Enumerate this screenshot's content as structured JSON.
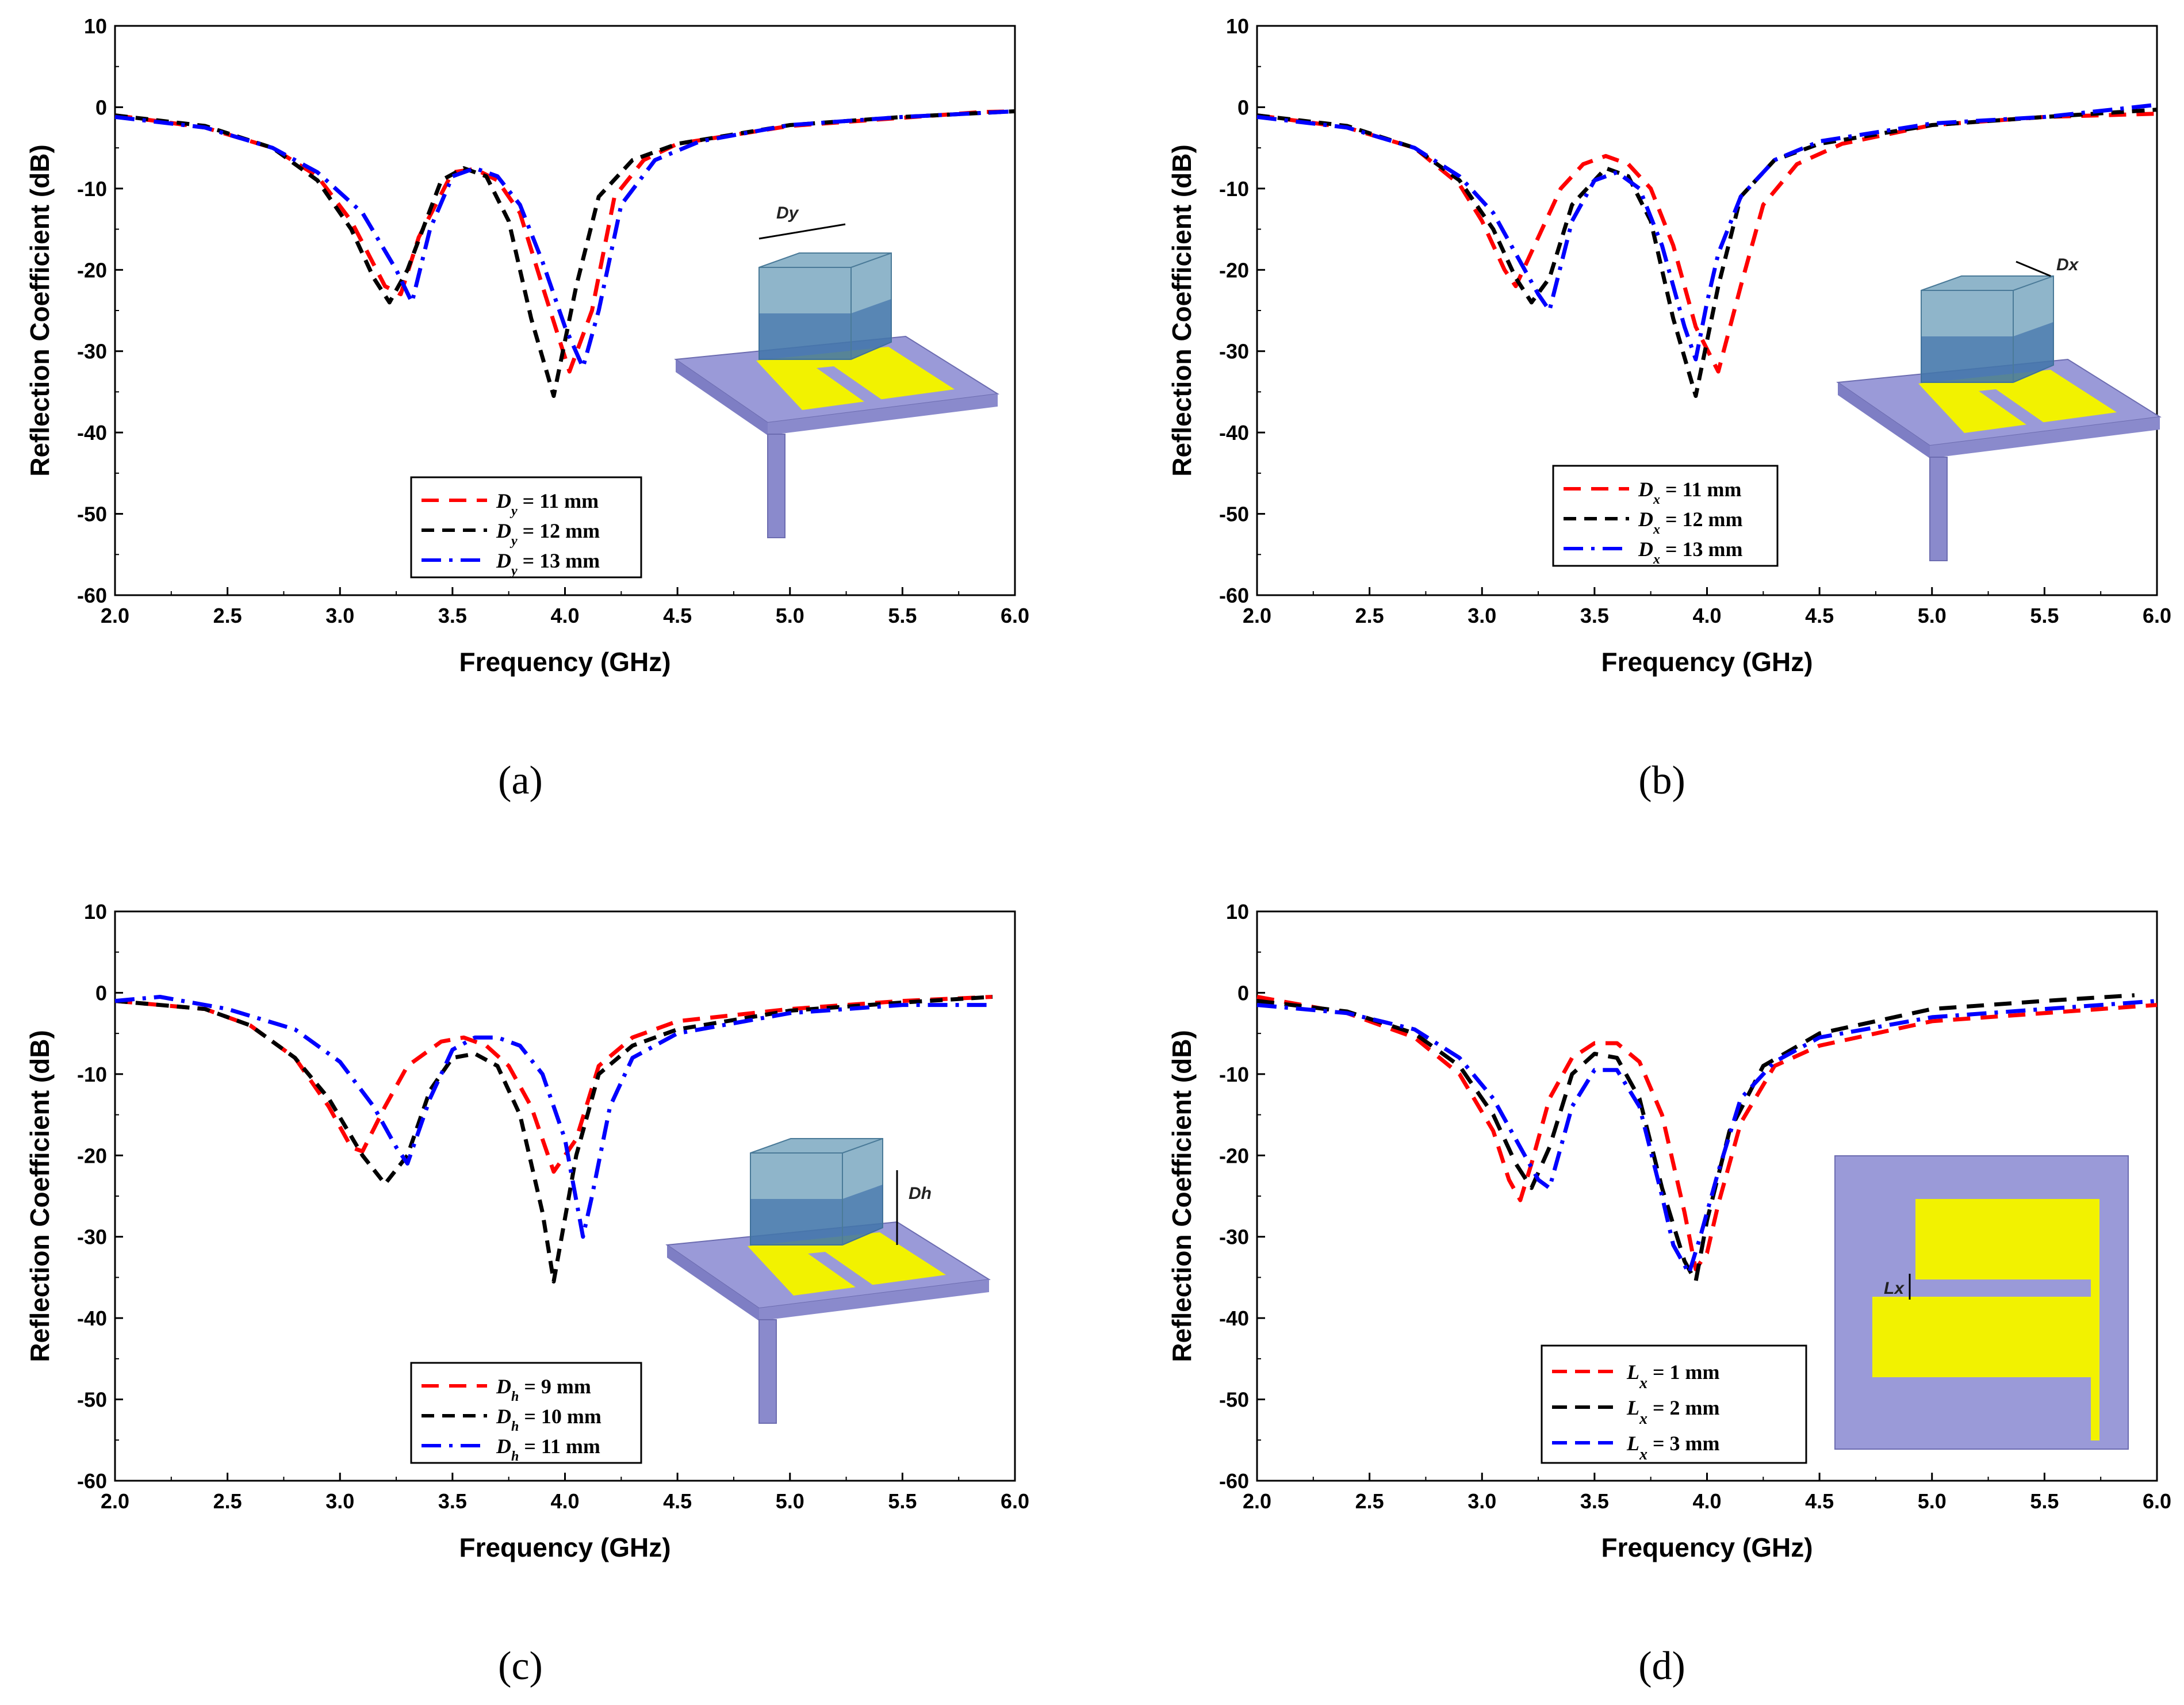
{
  "figure": {
    "panel_labels": [
      "(a)",
      "(b)",
      "(c)",
      "(d)"
    ]
  },
  "colors": {
    "red": "#ff0000",
    "black": "#000000",
    "blue": "#0000ff",
    "substrate": "#9a9ad8",
    "patch": "#f2f200",
    "resonator": "#6a9cb8"
  },
  "chart_data": [
    {
      "type": "line",
      "panel": "(a)",
      "xlabel": "Frequency (GHz)",
      "ylabel": "Reflection Coefficient (dB)",
      "xlim": [
        2.0,
        6.0
      ],
      "ylim": [
        -60,
        10
      ],
      "xticks": [
        "2.0",
        "2.5",
        "3.0",
        "3.5",
        "4.0",
        "4.5",
        "5.0",
        "5.5",
        "6.0"
      ],
      "yticks": [
        "10",
        "0",
        "-10",
        "-20",
        "-30",
        "-40",
        "-50",
        "-60"
      ],
      "inset_label": "Dy",
      "inset_kind": "3d",
      "series": [
        {
          "name": "= 11 mm",
          "sym": "D",
          "sub": "y",
          "color": "#ff0000",
          "dash": "dash",
          "x": [
            2.0,
            2.4,
            2.7,
            2.9,
            3.05,
            3.2,
            3.27,
            3.35,
            3.5,
            3.6,
            3.7,
            3.8,
            3.9,
            4.02,
            4.12,
            4.22,
            4.35,
            4.5,
            5.0,
            5.5,
            5.85,
            6.0
          ],
          "y": [
            -1,
            -2.5,
            -5,
            -8.5,
            -14,
            -22,
            -23,
            -16,
            -8,
            -7.6,
            -9,
            -13,
            -22,
            -32.5,
            -25,
            -11,
            -6.5,
            -4.5,
            -2.3,
            -1.3,
            -0.6,
            -0.5
          ]
        },
        {
          "name": "= 12 mm",
          "sym": "D",
          "sub": "y",
          "color": "#000000",
          "dash": "dashfine",
          "x": [
            2.0,
            2.4,
            2.7,
            2.9,
            3.05,
            3.15,
            3.22,
            3.3,
            3.45,
            3.55,
            3.65,
            3.75,
            3.85,
            3.95,
            4.05,
            4.15,
            4.3,
            4.5,
            5.0,
            5.5,
            6.0
          ],
          "y": [
            -1,
            -2.3,
            -5,
            -9,
            -15,
            -21,
            -24,
            -20,
            -9,
            -7.5,
            -8.5,
            -14,
            -26,
            -35.5,
            -22,
            -11,
            -6.5,
            -4.5,
            -2.2,
            -1.2,
            -0.5
          ]
        },
        {
          "name": "= 13 mm",
          "sym": "D",
          "sub": "y",
          "color": "#0000ff",
          "dash": "dashdot",
          "x": [
            2.0,
            2.4,
            2.7,
            2.9,
            3.1,
            3.25,
            3.32,
            3.4,
            3.5,
            3.6,
            3.7,
            3.8,
            3.9,
            4.0,
            4.08,
            4.15,
            4.25,
            4.4,
            4.6,
            5.0,
            5.5,
            6.0
          ],
          "y": [
            -1.2,
            -2.5,
            -5,
            -8,
            -13,
            -20,
            -24,
            -15,
            -8.5,
            -7.5,
            -8.5,
            -12,
            -19,
            -27,
            -32,
            -25,
            -12,
            -6.5,
            -4.2,
            -2.2,
            -1.2,
            -0.5
          ]
        }
      ]
    },
    {
      "type": "line",
      "panel": "(b)",
      "xlabel": "Frequency (GHz)",
      "ylabel": "Reflection Coefficient (dB)",
      "xlim": [
        2.0,
        6.0
      ],
      "ylim": [
        -60,
        10
      ],
      "xticks": [
        "2.0",
        "2.5",
        "3.0",
        "3.5",
        "4.0",
        "4.5",
        "5.0",
        "5.5",
        "6.0"
      ],
      "yticks": [
        "10",
        "0",
        "-10",
        "-20",
        "-30",
        "-40",
        "-50",
        "-60"
      ],
      "inset_label": "Dx",
      "inset_kind": "3d",
      "series": [
        {
          "name": "= 11 mm",
          "sym": "D",
          "sub": "x",
          "color": "#ff0000",
          "dash": "dash",
          "x": [
            2.0,
            2.4,
            2.7,
            2.9,
            3.0,
            3.1,
            3.15,
            3.25,
            3.35,
            3.45,
            3.55,
            3.65,
            3.75,
            3.85,
            3.95,
            4.05,
            4.15,
            4.25,
            4.4,
            4.6,
            5.0,
            5.5,
            6.0
          ],
          "y": [
            -1,
            -2.5,
            -5,
            -9.5,
            -14,
            -20,
            -22,
            -16,
            -10,
            -7,
            -6,
            -7,
            -10,
            -17,
            -27,
            -32.5,
            -22,
            -12,
            -7,
            -4.5,
            -2.2,
            -1.2,
            -0.8
          ]
        },
        {
          "name": "= 12 mm",
          "sym": "D",
          "sub": "x",
          "color": "#000000",
          "dash": "dashfine",
          "x": [
            2.0,
            2.4,
            2.7,
            2.9,
            3.05,
            3.15,
            3.22,
            3.3,
            3.4,
            3.55,
            3.65,
            3.75,
            3.85,
            3.95,
            4.05,
            4.15,
            4.3,
            4.5,
            5.0,
            5.5,
            6.0
          ],
          "y": [
            -1,
            -2.3,
            -5,
            -9,
            -15,
            -21,
            -24,
            -21,
            -12,
            -7.5,
            -8.5,
            -14,
            -26,
            -35.5,
            -22,
            -11,
            -6.5,
            -4.5,
            -2.2,
            -1.2,
            -0.3
          ]
        },
        {
          "name": "= 13 mm",
          "sym": "D",
          "sub": "x",
          "color": "#0000ff",
          "dash": "dashdot",
          "x": [
            2.0,
            2.4,
            2.7,
            2.9,
            3.05,
            3.15,
            3.25,
            3.3,
            3.4,
            3.5,
            3.6,
            3.7,
            3.8,
            3.9,
            3.95,
            4.0,
            4.05,
            4.15,
            4.3,
            4.5,
            5.0,
            5.5,
            6.0
          ],
          "y": [
            -1.2,
            -2.5,
            -5,
            -8.5,
            -13,
            -18,
            -23,
            -25,
            -14,
            -9,
            -8,
            -10,
            -17,
            -27,
            -31,
            -24,
            -18,
            -11,
            -6.5,
            -4.2,
            -2,
            -1.2,
            0.3
          ]
        }
      ]
    },
    {
      "type": "line",
      "panel": "(c)",
      "xlabel": "Frequency (GHz)",
      "ylabel": "Reflection Coefficient (dB)",
      "xlim": [
        2.0,
        6.0
      ],
      "ylim": [
        -60,
        10
      ],
      "xticks": [
        "2.0",
        "2.5",
        "3.0",
        "3.5",
        "4.0",
        "4.5",
        "5.0",
        "5.5",
        "6.0"
      ],
      "yticks": [
        "10",
        "0",
        "-10",
        "-20",
        "-30",
        "-40",
        "-50",
        "-60"
      ],
      "inset_label": "Dh",
      "inset_kind": "3d",
      "series": [
        {
          "name": "= 9 mm",
          "sym": "D",
          "sub": "h",
          "color": "#ff0000",
          "dash": "dash",
          "x": [
            2.0,
            2.4,
            2.6,
            2.8,
            2.95,
            3.05,
            3.1,
            3.2,
            3.3,
            3.45,
            3.55,
            3.65,
            3.75,
            3.85,
            3.95,
            4.05,
            4.15,
            4.3,
            4.5,
            5.0,
            5.5,
            5.9
          ],
          "y": [
            -1,
            -2,
            -4,
            -8,
            -14,
            -19,
            -19.5,
            -14,
            -9,
            -6,
            -5.5,
            -6.5,
            -9,
            -14,
            -22,
            -18,
            -9,
            -5.5,
            -3.5,
            -2,
            -1,
            -0.5
          ]
        },
        {
          "name": "= 10 mm",
          "sym": "D",
          "sub": "h",
          "color": "#000000",
          "dash": "dashfine",
          "x": [
            2.0,
            2.4,
            2.6,
            2.8,
            2.95,
            3.1,
            3.2,
            3.3,
            3.4,
            3.5,
            3.6,
            3.7,
            3.8,
            3.9,
            3.95,
            4.05,
            4.15,
            4.3,
            4.5,
            5.0,
            5.5,
            5.9
          ],
          "y": [
            -1,
            -2,
            -4,
            -8,
            -13,
            -20,
            -23.5,
            -20,
            -12,
            -8,
            -7.5,
            -9,
            -15,
            -27,
            -35.5,
            -20,
            -10,
            -6.5,
            -4.5,
            -2.2,
            -1.2,
            -0.5
          ]
        },
        {
          "name": "= 11 mm",
          "sym": "D",
          "sub": "h",
          "color": "#0000ff",
          "dash": "dashdot",
          "x": [
            2.0,
            2.2,
            2.5,
            2.8,
            3.0,
            3.15,
            3.25,
            3.3,
            3.4,
            3.5,
            3.6,
            3.7,
            3.8,
            3.9,
            4.0,
            4.08,
            4.12,
            4.2,
            4.3,
            4.5,
            5.0,
            5.5,
            5.9
          ],
          "y": [
            -1,
            -0.5,
            -2,
            -4.5,
            -8.5,
            -14,
            -19,
            -21,
            -13,
            -7,
            -5.5,
            -5.5,
            -6.5,
            -10,
            -18,
            -30,
            -25,
            -14,
            -8,
            -5,
            -2.5,
            -1.5,
            -1.5
          ]
        }
      ]
    },
    {
      "type": "line",
      "panel": "(d)",
      "xlabel": "Frequency (GHz)",
      "ylabel": "Reflection Coefficient (dB)",
      "xlim": [
        2.0,
        6.0
      ],
      "ylim": [
        -60,
        10
      ],
      "xticks": [
        "2.0",
        "2.5",
        "3.0",
        "3.5",
        "4.0",
        "4.5",
        "5.0",
        "5.5",
        "6.0"
      ],
      "yticks": [
        "10",
        "0",
        "-10",
        "-20",
        "-30",
        "-40",
        "-50",
        "-60"
      ],
      "inset_label": "Lx",
      "inset_kind": "planar",
      "series": [
        {
          "name": "= 1 mm",
          "sym": "L",
          "sub": "x",
          "color": "#ff0000",
          "dash": "dash",
          "x": [
            2.0,
            2.4,
            2.7,
            2.9,
            3.05,
            3.12,
            3.17,
            3.22,
            3.3,
            3.4,
            3.5,
            3.6,
            3.7,
            3.8,
            3.9,
            3.95,
            4.0,
            4.05,
            4.15,
            4.3,
            4.5,
            5.0,
            5.5,
            6.0
          ],
          "y": [
            -0.5,
            -2.5,
            -5.5,
            -10,
            -17,
            -23,
            -25.5,
            -21,
            -13,
            -8,
            -6.2,
            -6.2,
            -8.5,
            -15,
            -27,
            -34,
            -32,
            -26,
            -16,
            -9,
            -6.5,
            -3.5,
            -2.5,
            -1.5
          ]
        },
        {
          "name": "= 2 mm",
          "sym": "L",
          "sub": "x",
          "color": "#000000",
          "dash": "dash",
          "x": [
            2.0,
            2.4,
            2.7,
            2.9,
            3.05,
            3.15,
            3.22,
            3.3,
            3.4,
            3.5,
            3.6,
            3.7,
            3.8,
            3.9,
            3.95,
            4.0,
            4.1,
            4.25,
            4.5,
            5.0,
            5.5,
            5.9
          ],
          "y": [
            -1,
            -2.3,
            -5,
            -9,
            -15,
            -21,
            -24,
            -19,
            -10,
            -7.5,
            -8,
            -13,
            -24,
            -33,
            -35.5,
            -28,
            -17,
            -9,
            -5,
            -2,
            -1,
            -0.3
          ]
        },
        {
          "name": "= 3 mm",
          "sym": "L",
          "sub": "x",
          "color": "#0000ff",
          "dash": "dashdot",
          "x": [
            2.0,
            2.4,
            2.7,
            2.9,
            3.05,
            3.15,
            3.25,
            3.3,
            3.4,
            3.5,
            3.6,
            3.7,
            3.8,
            3.85,
            3.92,
            3.97,
            4.05,
            4.15,
            4.3,
            4.5,
            5.0,
            5.5,
            6.0
          ],
          "y": [
            -1.5,
            -2.5,
            -4.5,
            -8,
            -13,
            -18,
            -23,
            -24,
            -14,
            -9.5,
            -9.5,
            -14,
            -25,
            -31,
            -34.5,
            -30,
            -22,
            -13,
            -8.5,
            -5.5,
            -3,
            -2,
            -1
          ]
        }
      ]
    }
  ]
}
